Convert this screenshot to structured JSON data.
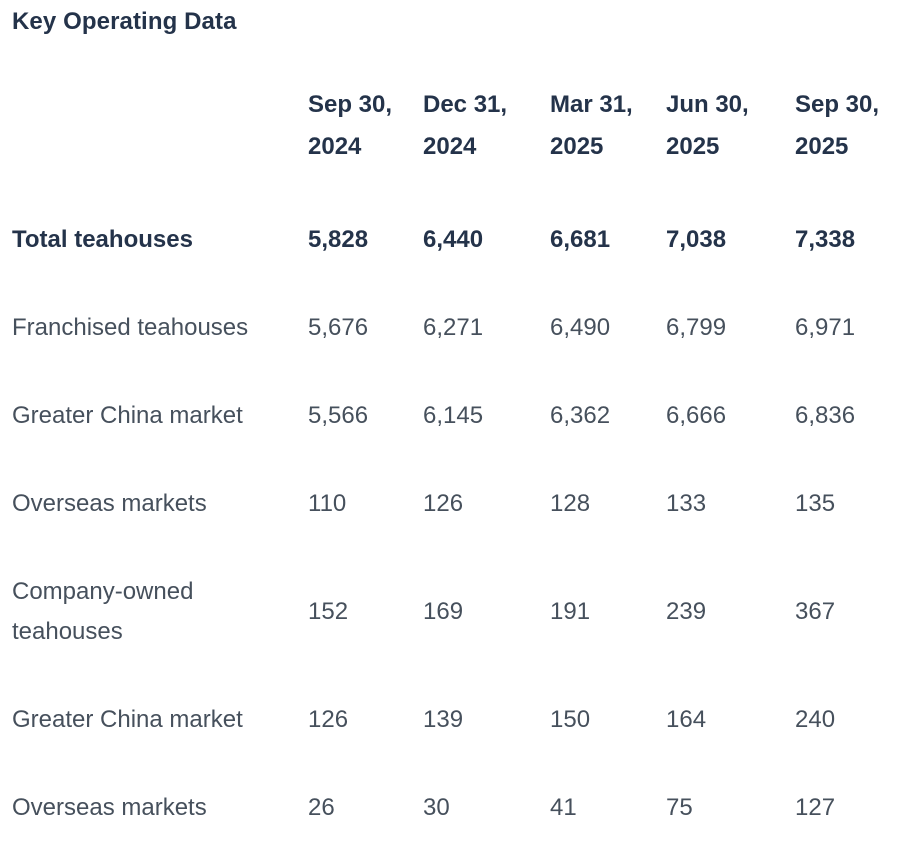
{
  "title": "Key Operating Data",
  "colors": {
    "background": "#ffffff",
    "heading_text": "#24334a",
    "body_text": "#46505c"
  },
  "table": {
    "label_column_header": "",
    "columns": [
      "Sep 30,\n2024",
      "Dec 31,\n2024",
      "Mar 31,\n2025",
      "Jun 30,\n2025",
      "Sep 30,\n2025"
    ],
    "rows": [
      {
        "label": "Total teahouses",
        "bold": true,
        "values": [
          "5,828",
          "6,440",
          "6,681",
          "7,038",
          "7,338"
        ]
      },
      {
        "label": "Franchised teahouses",
        "bold": false,
        "values": [
          "5,676",
          "6,271",
          "6,490",
          "6,799",
          "6,971"
        ]
      },
      {
        "label": "Greater China market",
        "bold": false,
        "values": [
          "5,566",
          "6,145",
          "6,362",
          "6,666",
          "6,836"
        ]
      },
      {
        "label": "Overseas markets",
        "bold": false,
        "values": [
          "110",
          "126",
          "128",
          "133",
          "135"
        ]
      },
      {
        "label": "Company-owned teahouses",
        "bold": false,
        "values": [
          "152",
          "169",
          "191",
          "239",
          "367"
        ]
      },
      {
        "label": "Greater China market",
        "bold": false,
        "values": [
          "126",
          "139",
          "150",
          "164",
          "240"
        ]
      },
      {
        "label": "Overseas markets",
        "bold": false,
        "values": [
          "26",
          "30",
          "41",
          "75",
          "127"
        ]
      }
    ]
  },
  "chart_data": {
    "type": "table",
    "title": "Key Operating Data",
    "categories": [
      "Sep 30, 2024",
      "Dec 31, 2024",
      "Mar 31, 2025",
      "Jun 30, 2025",
      "Sep 30, 2025"
    ],
    "series": [
      {
        "name": "Total teahouses",
        "values": [
          5828,
          6440,
          6681,
          7038,
          7338
        ]
      },
      {
        "name": "Franchised teahouses",
        "values": [
          5676,
          6271,
          6490,
          6799,
          6971
        ]
      },
      {
        "name": "Franchised teahouses - Greater China market",
        "values": [
          5566,
          6145,
          6362,
          6666,
          6836
        ]
      },
      {
        "name": "Franchised teahouses - Overseas markets",
        "values": [
          110,
          126,
          128,
          133,
          135
        ]
      },
      {
        "name": "Company-owned teahouses",
        "values": [
          152,
          169,
          191,
          239,
          367
        ]
      },
      {
        "name": "Company-owned teahouses - Greater China market",
        "values": [
          126,
          139,
          150,
          164,
          240
        ]
      },
      {
        "name": "Company-owned teahouses - Overseas markets",
        "values": [
          26,
          30,
          41,
          75,
          127
        ]
      }
    ]
  }
}
